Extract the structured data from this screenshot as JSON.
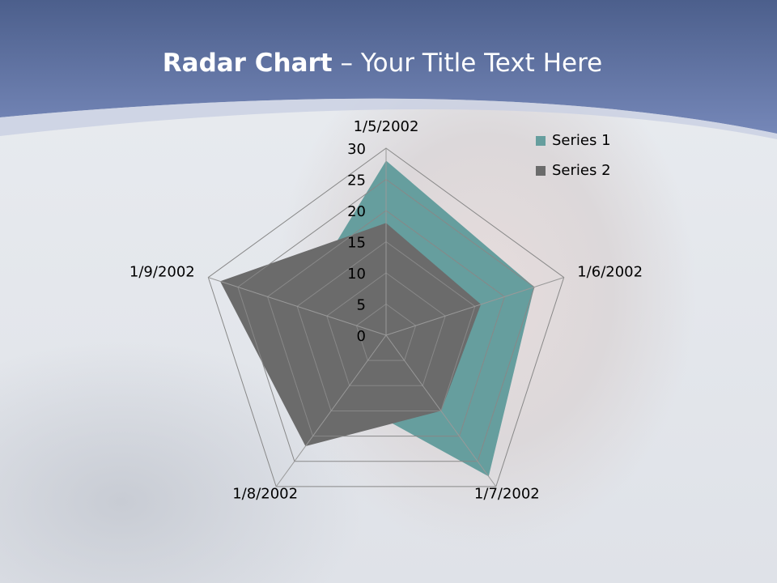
{
  "slide": {
    "title_bold": "Radar Chart",
    "title_rest": " – Your Title Text Here"
  },
  "colors": {
    "header": "#5d74a6",
    "series1": "#669e9e",
    "series2": "#6b6b6b"
  },
  "chart_data": {
    "type": "radar",
    "categories": [
      "1/5/2002",
      "1/6/2002",
      "1/7/2002",
      "1/8/2002",
      "1/9/2002"
    ],
    "series": [
      {
        "name": "Series 1",
        "values": [
          28,
          25,
          28,
          12,
          15
        ]
      },
      {
        "name": "Series 2",
        "values": [
          18,
          16,
          15,
          22,
          28
        ]
      }
    ],
    "ylim": [
      0,
      30
    ],
    "ticks": [
      "0",
      "5",
      "10",
      "15",
      "20",
      "25",
      "30"
    ],
    "legend": "top-right",
    "grid": true
  }
}
